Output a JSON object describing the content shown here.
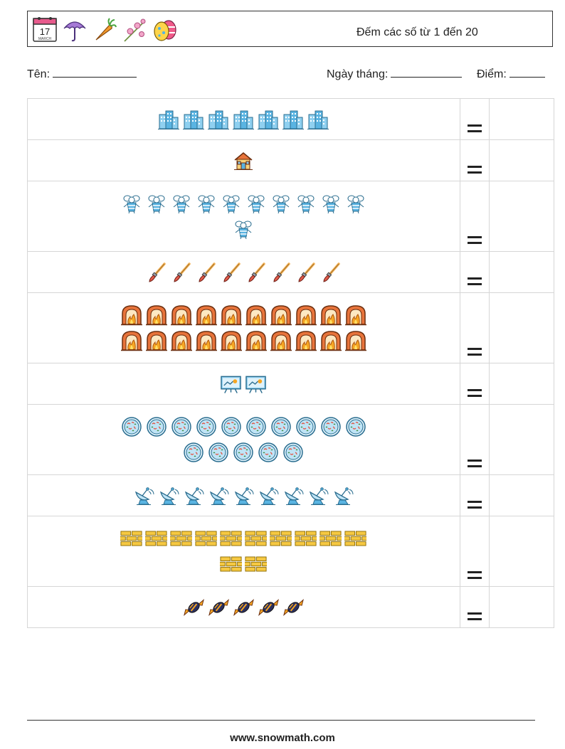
{
  "header": {
    "icons": [
      "calendar-icon",
      "umbrella-icon",
      "carrot-icon",
      "flower-icon",
      "easter-egg-icon"
    ],
    "calendar_day": "17",
    "calendar_month": "MARCH",
    "title": "Đếm các số từ 1 đến 20"
  },
  "info": {
    "name_label": "Tên:",
    "date_label": "Ngày tháng:",
    "score_label": "Điểm:"
  },
  "equals_sign": "=",
  "rows": [
    {
      "icon": "office-building-icon",
      "count": 7
    },
    {
      "icon": "house-icon",
      "count": 1
    },
    {
      "icon": "bee-icon",
      "count": 11
    },
    {
      "icon": "paint-brush-icon",
      "count": 8
    },
    {
      "icon": "fireplace-icon",
      "count": 20
    },
    {
      "icon": "presentation-board-icon",
      "count": 2
    },
    {
      "icon": "petri-dish-icon",
      "count": 15
    },
    {
      "icon": "satellite-dish-icon",
      "count": 9
    },
    {
      "icon": "brick-wall-icon",
      "count": 12
    },
    {
      "icon": "candy-icon",
      "count": 5
    }
  ],
  "footer": {
    "website": "www.snowmath.com"
  }
}
